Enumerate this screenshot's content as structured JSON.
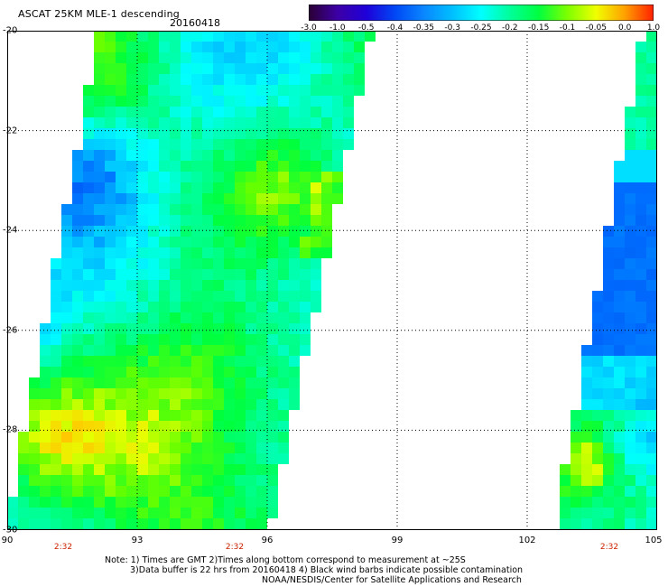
{
  "header": {
    "title": "ASCAT 25KM MLE-1 descending",
    "date": "20160418"
  },
  "colorbar": {
    "labels": [
      "-3.0",
      "-1.0",
      "-0.5",
      "-0.4",
      "-0.35",
      "-0.3",
      "-0.25",
      "-0.2",
      "-0.15",
      "-0.1",
      "-0.05",
      "0.0",
      "1.0"
    ],
    "colors": [
      "#2a0033",
      "#3d00a6",
      "#1f00d9",
      "#0047f5",
      "#0a86ff",
      "#00bfff",
      "#00ffff",
      "#00ff9a",
      "#00ff40",
      "#7dff00",
      "#f0ff00",
      "#ffa000",
      "#ff2000"
    ]
  },
  "map": {
    "lat_labels": [
      "-20",
      "-22",
      "-24",
      "-26",
      "-28",
      "-30"
    ],
    "lon_labels": [
      "90",
      "93",
      "96",
      "99",
      "102",
      "105"
    ],
    "time_labels": [
      "2:32",
      "2:32",
      "2:32"
    ],
    "lat_range": [
      -30,
      -20
    ],
    "lon_range": [
      90,
      105
    ]
  },
  "notes": {
    "line1": "Note: 1) Times are GMT 2)Times along bottom correspond to measurement at ~25S",
    "line2": "3)Data buffer is 22 hrs from 20160418 4) Black wind barbs indicate possible contamination",
    "line3": "NOAA/NESDIS/Center for Satellite Applications and Research"
  }
}
